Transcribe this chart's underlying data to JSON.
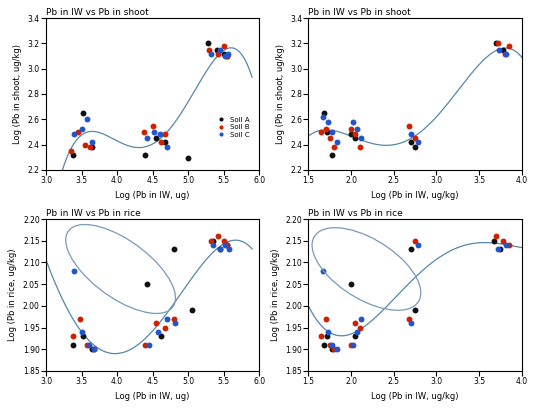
{
  "shoot_iw_x": {
    "A": [
      3.38,
      3.52,
      3.65,
      4.4,
      4.55,
      4.68,
      5.0,
      5.28,
      5.4,
      5.5,
      5.55
    ],
    "B": [
      3.35,
      3.45,
      3.55,
      3.62,
      4.38,
      4.5,
      4.62,
      4.68,
      5.3,
      5.42,
      5.5,
      5.55
    ],
    "C": [
      3.4,
      3.5,
      3.58,
      3.65,
      4.42,
      4.52,
      4.6,
      4.7,
      5.32,
      5.45,
      5.52,
      5.56
    ]
  },
  "shoot_iw_y": {
    "A": [
      2.32,
      2.65,
      2.38,
      2.32,
      2.45,
      2.42,
      2.29,
      3.2,
      3.15,
      3.12,
      3.1
    ],
    "B": [
      2.35,
      2.5,
      2.4,
      2.38,
      2.5,
      2.55,
      2.42,
      2.48,
      3.15,
      3.12,
      3.18,
      3.1
    ],
    "C": [
      2.48,
      2.52,
      2.6,
      2.42,
      2.45,
      2.5,
      2.48,
      2.38,
      3.12,
      3.15,
      3.1,
      3.12
    ]
  },
  "shoot_iwkg_x": {
    "A": [
      1.68,
      1.72,
      1.78,
      2.0,
      2.05,
      2.7,
      2.75,
      3.7,
      3.78
    ],
    "B": [
      1.65,
      1.7,
      1.75,
      1.8,
      2.0,
      2.05,
      2.1,
      2.68,
      2.75,
      3.72,
      3.8,
      3.85
    ],
    "C": [
      1.67,
      1.73,
      1.78,
      1.83,
      2.02,
      2.07,
      2.12,
      2.7,
      2.78,
      3.74,
      3.82
    ]
  },
  "shoot_iwkg_y": {
    "A": [
      2.65,
      2.5,
      2.32,
      2.48,
      2.45,
      2.42,
      2.38,
      3.2,
      3.15
    ],
    "B": [
      2.5,
      2.52,
      2.45,
      2.38,
      2.52,
      2.48,
      2.38,
      2.55,
      2.45,
      3.2,
      3.12,
      3.18
    ],
    "C": [
      2.62,
      2.58,
      2.5,
      2.42,
      2.58,
      2.52,
      2.45,
      2.48,
      2.42,
      3.15,
      3.12
    ]
  },
  "rice_iw_x": {
    "A": [
      3.38,
      3.52,
      3.65,
      4.42,
      4.62,
      4.8,
      5.05,
      5.35,
      5.45,
      5.55
    ],
    "B": [
      3.38,
      3.48,
      3.58,
      3.68,
      4.4,
      4.55,
      4.68,
      4.8,
      5.32,
      5.42,
      5.5,
      5.55
    ],
    "C": [
      3.4,
      3.5,
      3.6,
      3.68,
      4.45,
      4.58,
      4.7,
      4.82,
      5.35,
      5.45,
      5.52,
      5.58
    ]
  },
  "rice_iw_y": {
    "A": [
      1.91,
      1.93,
      1.9,
      2.05,
      1.93,
      2.13,
      1.99,
      2.15,
      2.13,
      2.14
    ],
    "B": [
      1.93,
      1.97,
      1.91,
      1.9,
      1.91,
      1.96,
      1.95,
      1.97,
      2.15,
      2.16,
      2.15,
      2.14
    ],
    "C": [
      2.08,
      1.94,
      1.91,
      1.9,
      1.91,
      1.94,
      1.97,
      1.96,
      2.14,
      2.13,
      2.14,
      2.13
    ]
  },
  "rice_iwkg_x": {
    "A": [
      1.68,
      1.72,
      1.78,
      2.0,
      2.05,
      2.7,
      2.75,
      3.68,
      3.75
    ],
    "B": [
      1.65,
      1.7,
      1.75,
      1.8,
      2.0,
      2.05,
      2.1,
      2.68,
      2.75,
      3.7,
      3.78,
      3.85
    ],
    "C": [
      1.67,
      1.73,
      1.78,
      1.83,
      2.02,
      2.07,
      2.12,
      2.7,
      2.78,
      3.72,
      3.82
    ]
  },
  "rice_iwkg_y": {
    "A": [
      1.91,
      1.93,
      1.9,
      2.05,
      1.93,
      2.13,
      1.99,
      2.15,
      2.13
    ],
    "B": [
      1.93,
      1.97,
      1.91,
      1.9,
      1.91,
      1.96,
      1.95,
      1.97,
      2.15,
      2.16,
      2.15,
      2.14
    ],
    "C": [
      2.08,
      1.94,
      1.91,
      1.9,
      1.91,
      1.94,
      1.97,
      1.96,
      2.14,
      2.13,
      2.14
    ]
  },
  "colors": {
    "A": "#111111",
    "B": "#cc2200",
    "C": "#2255cc"
  },
  "curve_color": "#5588aa",
  "background": "#ffffff"
}
